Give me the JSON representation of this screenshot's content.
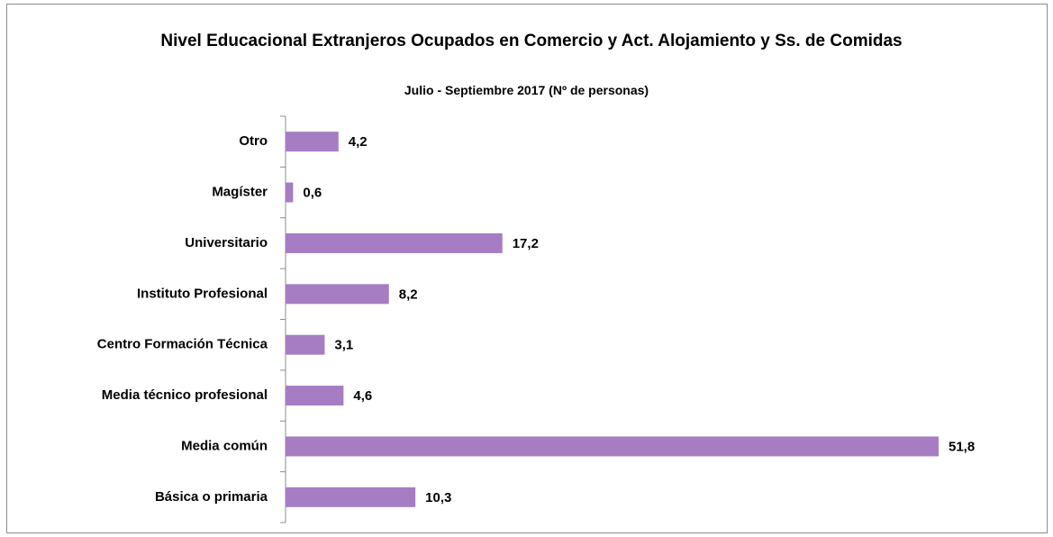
{
  "chart_data": {
    "type": "hbar",
    "title": "Nivel Educacional Extranjeros Ocupados en Comercio y Act. Alojamiento y Ss. de Comidas",
    "subtitle": "Julio - Septiembre 2017 (Nº de personas)",
    "categories": [
      "Otro",
      "Magíster",
      "Universitario",
      "Instituto Profesional",
      "Centro Formación Técnica",
      "Media técnico profesional",
      "Media común",
      "Básica o primaria"
    ],
    "values": [
      4.2,
      0.6,
      17.2,
      8.2,
      3.1,
      4.6,
      51.8,
      10.3
    ],
    "value_labels": [
      "4,2",
      "0,6",
      "17,2",
      "8,2",
      "3,1",
      "4,6",
      "51,8",
      "10,3"
    ],
    "color": "#a67dc3"
  }
}
